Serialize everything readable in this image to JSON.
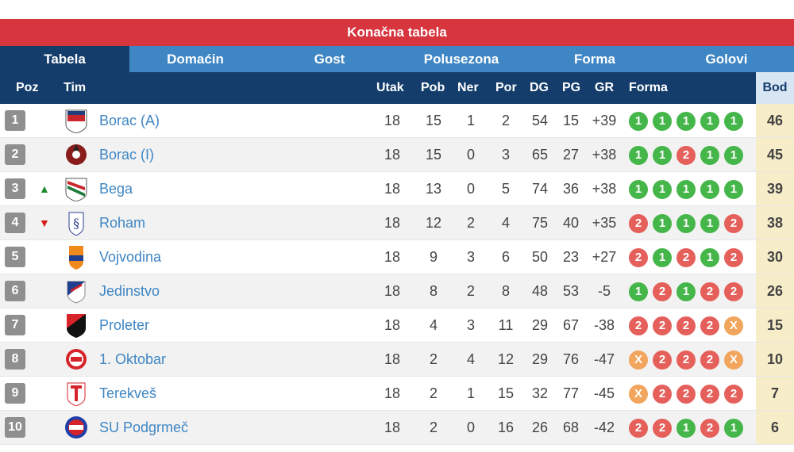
{
  "header": {
    "title": "Konačna tabela"
  },
  "tabs": [
    {
      "label": "Tabela",
      "active": true
    },
    {
      "label": "Domaćin",
      "active": false
    },
    {
      "label": "Gost",
      "active": false
    },
    {
      "label": "Polusezona",
      "active": false
    },
    {
      "label": "Forma",
      "active": false
    },
    {
      "label": "Golovi",
      "active": false
    }
  ],
  "columns": {
    "poz": "Poz",
    "tim": "Tim",
    "utak": "Utak",
    "pob": "Pob",
    "ner": "Ner",
    "por": "Por",
    "dg": "DG",
    "pg": "PG",
    "gr": "GR",
    "forma": "Forma",
    "bod": "Bod"
  },
  "colors": {
    "win": "#45b649",
    "loss": "#e5605b",
    "draw": "#f2a55c",
    "accent": "#d7363f",
    "nav": "#143d6c",
    "tabbar": "#3f86c4"
  },
  "rows": [
    {
      "poz": "1",
      "trend": "",
      "team": "Borac (A)",
      "utak": "18",
      "pob": "15",
      "ner": "1",
      "por": "2",
      "dg": "54",
      "pg": "15",
      "gr": "+39",
      "forma": [
        "1",
        "1",
        "1",
        "1",
        "1"
      ],
      "bod": "46"
    },
    {
      "poz": "2",
      "trend": "",
      "team": "Borac (I)",
      "utak": "18",
      "pob": "15",
      "ner": "0",
      "por": "3",
      "dg": "65",
      "pg": "27",
      "gr": "+38",
      "forma": [
        "1",
        "1",
        "2",
        "1",
        "1"
      ],
      "bod": "45"
    },
    {
      "poz": "3",
      "trend": "▲",
      "team": "Bega",
      "utak": "18",
      "pob": "13",
      "ner": "0",
      "por": "5",
      "dg": "74",
      "pg": "36",
      "gr": "+38",
      "forma": [
        "1",
        "1",
        "1",
        "1",
        "1"
      ],
      "bod": "39"
    },
    {
      "poz": "4",
      "trend": "▼",
      "team": "Roham",
      "utak": "18",
      "pob": "12",
      "ner": "2",
      "por": "4",
      "dg": "75",
      "pg": "40",
      "gr": "+35",
      "forma": [
        "2",
        "1",
        "1",
        "1",
        "2"
      ],
      "bod": "38"
    },
    {
      "poz": "5",
      "trend": "",
      "team": "Vojvodina",
      "utak": "18",
      "pob": "9",
      "ner": "3",
      "por": "6",
      "dg": "50",
      "pg": "23",
      "gr": "+27",
      "forma": [
        "2",
        "1",
        "2",
        "1",
        "2"
      ],
      "bod": "30"
    },
    {
      "poz": "6",
      "trend": "",
      "team": "Jedinstvo",
      "utak": "18",
      "pob": "8",
      "ner": "2",
      "por": "8",
      "dg": "48",
      "pg": "53",
      "gr": "-5",
      "forma": [
        "1",
        "2",
        "1",
        "2",
        "2"
      ],
      "bod": "26"
    },
    {
      "poz": "7",
      "trend": "",
      "team": "Proleter",
      "utak": "18",
      "pob": "4",
      "ner": "3",
      "por": "11",
      "dg": "29",
      "pg": "67",
      "gr": "-38",
      "forma": [
        "2",
        "2",
        "2",
        "2",
        "X"
      ],
      "bod": "15"
    },
    {
      "poz": "8",
      "trend": "",
      "team": "1. Oktobar",
      "utak": "18",
      "pob": "2",
      "ner": "4",
      "por": "12",
      "dg": "29",
      "pg": "76",
      "gr": "-47",
      "forma": [
        "X",
        "2",
        "2",
        "2",
        "X"
      ],
      "bod": "10"
    },
    {
      "poz": "9",
      "trend": "",
      "team": "Terekveš",
      "utak": "18",
      "pob": "2",
      "ner": "1",
      "por": "15",
      "dg": "32",
      "pg": "77",
      "gr": "-45",
      "forma": [
        "X",
        "2",
        "2",
        "2",
        "2"
      ],
      "bod": "7"
    },
    {
      "poz": "10",
      "trend": "",
      "team": "SU Podgrmeč",
      "utak": "18",
      "pob": "2",
      "ner": "0",
      "por": "16",
      "dg": "26",
      "pg": "68",
      "gr": "-42",
      "forma": [
        "2",
        "2",
        "1",
        "2",
        "1"
      ],
      "bod": "6"
    }
  ]
}
